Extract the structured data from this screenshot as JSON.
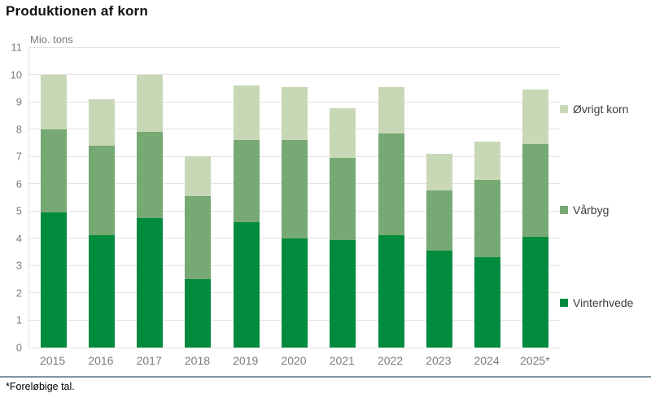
{
  "title": "Produktionen af korn",
  "unit_label": "Mio. tons",
  "footnote": "*Foreløbige tal.",
  "colors": {
    "vinterhvede": "#008b3e",
    "vaarbyg": "#76a973",
    "oevrigt_korn": "#c8d8b6",
    "grid": "#e4e4df",
    "axis_text": "#7d7d75",
    "legend_text": "#3c3c3c",
    "separator": "#7e95a3"
  },
  "legend": {
    "items": [
      {
        "label": "Øvrigt korn",
        "color": "#c8d8b6"
      },
      {
        "label": "Vårbyg",
        "color": "#76a973"
      },
      {
        "label": "Vinterhvede",
        "color": "#008b3e"
      }
    ]
  },
  "chart_data": {
    "type": "bar",
    "stacked": true,
    "title": "Produktionen af korn",
    "xlabel": "",
    "ylabel": "Mio. tons",
    "ylim": [
      0,
      11
    ],
    "yticks": [
      0,
      1,
      2,
      3,
      4,
      5,
      6,
      7,
      8,
      9,
      10,
      11
    ],
    "grid": true,
    "legend_position": "right",
    "categories": [
      "2015",
      "2016",
      "2017",
      "2018",
      "2019",
      "2020",
      "2021",
      "2022",
      "2023",
      "2024",
      "2025*"
    ],
    "series": [
      {
        "name": "Vinterhvede",
        "color": "#008b3e",
        "values": [
          4.95,
          4.1,
          4.75,
          2.5,
          4.6,
          4.0,
          3.95,
          4.1,
          3.55,
          3.3,
          4.05
        ]
      },
      {
        "name": "Vårbyg",
        "color": "#76a973",
        "values": [
          3.05,
          3.3,
          3.15,
          3.05,
          3.0,
          3.6,
          3.0,
          3.75,
          2.2,
          2.85,
          3.4
        ]
      },
      {
        "name": "Øvrigt korn",
        "color": "#c8d8b6",
        "values": [
          2.0,
          1.7,
          2.1,
          1.45,
          2.0,
          1.95,
          1.8,
          1.7,
          1.35,
          1.4,
          2.0
        ]
      }
    ],
    "totals": [
      10.0,
      9.1,
      10.0,
      7.0,
      9.6,
      9.55,
      8.75,
      9.55,
      7.1,
      7.55,
      9.45
    ]
  }
}
